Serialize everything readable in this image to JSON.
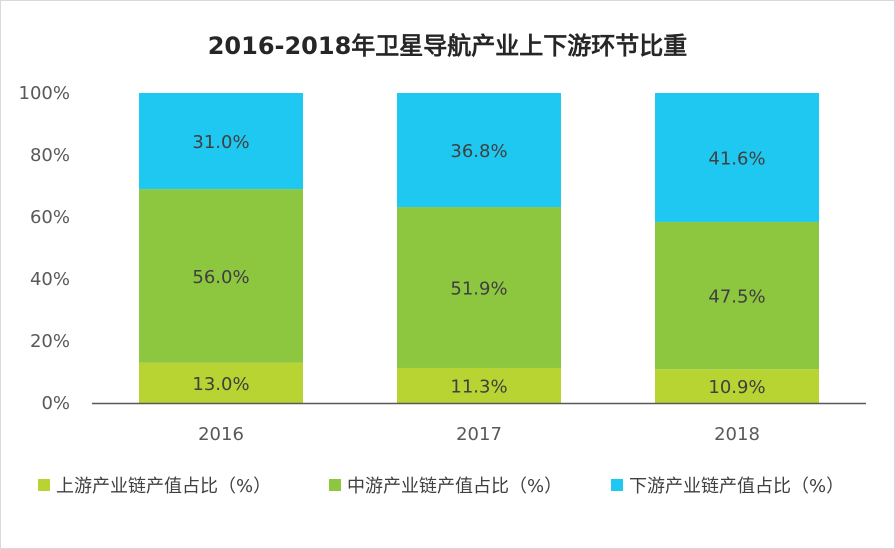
{
  "chart_data": {
    "type": "bar",
    "stacked": true,
    "title": "2016-2018年卫星导航产业上下游环节比重",
    "categories": [
      "2016",
      "2017",
      "2018"
    ],
    "yticks": [
      "0%",
      "20%",
      "40%",
      "60%",
      "80%",
      "100%"
    ],
    "ylim": [
      0,
      100
    ],
    "grid": false,
    "legend_position": "bottom",
    "series": [
      {
        "name": "上游产业链产值占比（%）",
        "values": [
          13.0,
          11.3,
          10.9
        ],
        "labels": [
          "13.0%",
          "11.3%",
          "10.9%"
        ],
        "color": "#b7d432"
      },
      {
        "name": "中游产业链产值占比（%）",
        "values": [
          56.0,
          51.9,
          47.5
        ],
        "labels": [
          "56.0%",
          "51.9%",
          "47.5%"
        ],
        "color": "#8dc63f"
      },
      {
        "name": "下游产业链产值占比（%）",
        "values": [
          31.0,
          36.8,
          41.6
        ],
        "labels": [
          "31.0%",
          "36.8%",
          "41.6%"
        ],
        "color": "#1fc8f0"
      }
    ]
  }
}
